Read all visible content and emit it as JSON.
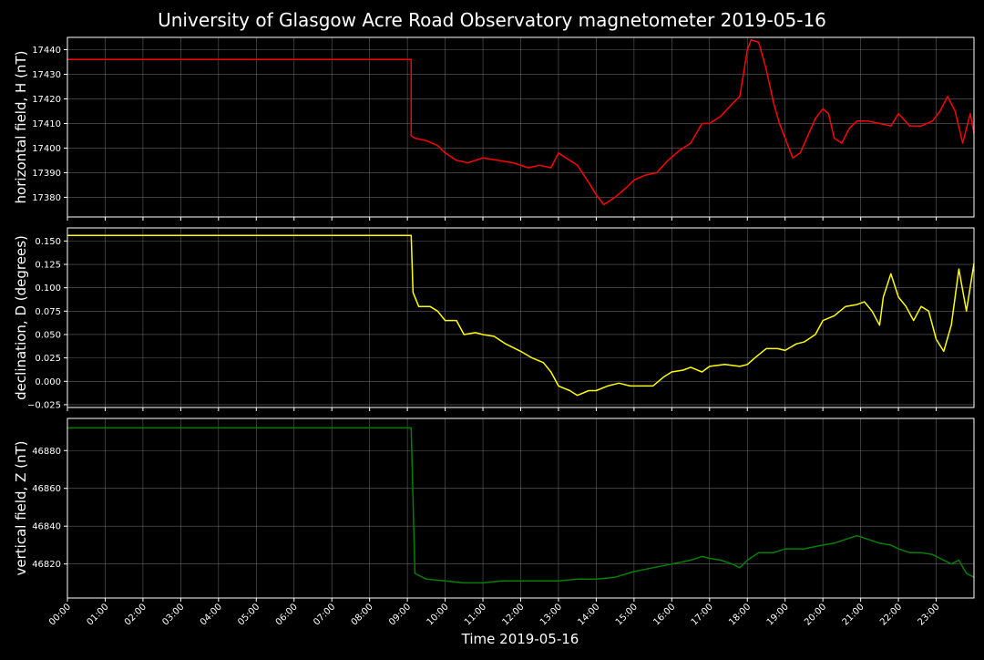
{
  "figure": {
    "title": "University of Glasgow Acre Road Observatory magnetometer 2019-05-16",
    "xlabel": "Time 2019-05-16",
    "background": "#000000",
    "grid_color": "#808080",
    "text_color": "#ffffff"
  },
  "chart_data": [
    {
      "type": "line",
      "ylabel": "horizontal field, H (nT)",
      "color": "#ff0000",
      "xlim": [
        0,
        24
      ],
      "ylim": [
        17372,
        17445
      ],
      "yticks": [
        17380,
        17390,
        17400,
        17410,
        17420,
        17430,
        17440
      ],
      "ytick_labels": [
        "17380",
        "17390",
        "17400",
        "17410",
        "17420",
        "17430",
        "17440"
      ],
      "xticks": [
        0,
        1,
        2,
        3,
        4,
        5,
        6,
        7,
        8,
        9,
        10,
        11,
        12,
        13,
        14,
        15,
        16,
        17,
        18,
        19,
        20,
        21,
        22,
        23
      ],
      "xtick_labels": [
        "00:00",
        "01:00",
        "02:00",
        "03:00",
        "04:00",
        "05:00",
        "06:00",
        "07:00",
        "08:00",
        "09:00",
        "10:00",
        "11:00",
        "12:00",
        "13:00",
        "14:00",
        "15:00",
        "16:00",
        "17:00",
        "18:00",
        "19:00",
        "20:00",
        "21:00",
        "22:00",
        "23:00"
      ],
      "grid": true,
      "series": [
        {
          "x": [
            0,
            9.1,
            9.1,
            9.2,
            9.5,
            9.8,
            10.0,
            10.3,
            10.6,
            11.0,
            11.4,
            11.8,
            12.2,
            12.5,
            12.8,
            13.0,
            13.2,
            13.5,
            13.8,
            14.0,
            14.2,
            14.5,
            14.8,
            15.0,
            15.3,
            15.6,
            15.9,
            16.2,
            16.5,
            16.8,
            17.0,
            17.3,
            17.6,
            17.8,
            18.0,
            18.1,
            18.3,
            18.5,
            18.7,
            18.85,
            19.0,
            19.2,
            19.4,
            19.6,
            19.8,
            20.0,
            20.15,
            20.3,
            20.5,
            20.7,
            20.9,
            21.2,
            21.5,
            21.8,
            22.0,
            22.3,
            22.6,
            22.9,
            23.1,
            23.3,
            23.5,
            23.7,
            23.9,
            24
          ],
          "y": [
            17436,
            17436,
            17405,
            17404,
            17403,
            17401,
            17398,
            17395,
            17394,
            17396,
            17395,
            17394,
            17392,
            17393,
            17392,
            17398,
            17396,
            17393,
            17386,
            17381,
            17377,
            17380,
            17384,
            17387,
            17389,
            17390,
            17395,
            17399,
            17402,
            17410,
            17410,
            17413,
            17418,
            17421,
            17440,
            17444,
            17443,
            17432,
            17418,
            17410,
            17404,
            17396,
            17398,
            17405,
            17412,
            17416,
            17414,
            17404,
            17402,
            17408,
            17411,
            17411,
            17410,
            17409,
            17414,
            17409,
            17409,
            17411,
            17415,
            17421,
            17415,
            17402,
            17414,
            17406
          ]
        }
      ]
    },
    {
      "type": "line",
      "ylabel": "declination, D (degrees)",
      "color": "#ffff00",
      "xlim": [
        0,
        24
      ],
      "ylim": [
        -0.028,
        0.164
      ],
      "yticks": [
        -0.025,
        0.0,
        0.025,
        0.05,
        0.075,
        0.1,
        0.125,
        0.15
      ],
      "ytick_labels": [
        "−0.025",
        "0.000",
        "0.025",
        "0.050",
        "0.075",
        "0.100",
        "0.125",
        "0.150"
      ],
      "xticks": [
        0,
        1,
        2,
        3,
        4,
        5,
        6,
        7,
        8,
        9,
        10,
        11,
        12,
        13,
        14,
        15,
        16,
        17,
        18,
        19,
        20,
        21,
        22,
        23
      ],
      "grid": true,
      "series": [
        {
          "x": [
            0,
            9.1,
            9.1,
            9.15,
            9.3,
            9.6,
            9.8,
            10.0,
            10.3,
            10.5,
            10.8,
            11.0,
            11.3,
            11.6,
            12.0,
            12.3,
            12.6,
            12.8,
            13.0,
            13.3,
            13.5,
            13.8,
            14.0,
            14.3,
            14.6,
            14.9,
            15.2,
            15.5,
            15.8,
            16.0,
            16.3,
            16.5,
            16.8,
            17.0,
            17.4,
            17.8,
            18.0,
            18.2,
            18.5,
            18.8,
            19.0,
            19.3,
            19.5,
            19.8,
            20.0,
            20.3,
            20.6,
            20.9,
            21.1,
            21.3,
            21.5,
            21.6,
            21.8,
            22.0,
            22.2,
            22.4,
            22.6,
            22.8,
            22.9,
            23.0,
            23.2,
            23.4,
            23.5,
            23.6,
            23.8,
            24
          ],
          "y": [
            0.156,
            0.156,
            0.156,
            0.095,
            0.08,
            0.08,
            0.075,
            0.065,
            0.065,
            0.05,
            0.052,
            0.05,
            0.048,
            0.04,
            0.032,
            0.025,
            0.02,
            0.01,
            -0.005,
            -0.01,
            -0.015,
            -0.01,
            -0.01,
            -0.005,
            -0.002,
            -0.005,
            -0.005,
            -0.005,
            0.005,
            0.01,
            0.012,
            0.015,
            0.01,
            0.016,
            0.018,
            0.016,
            0.018,
            0.025,
            0.035,
            0.035,
            0.033,
            0.04,
            0.042,
            0.05,
            0.065,
            0.07,
            0.08,
            0.082,
            0.085,
            0.075,
            0.06,
            0.09,
            0.115,
            0.09,
            0.08,
            0.065,
            0.08,
            0.075,
            0.06,
            0.045,
            0.032,
            0.06,
            0.09,
            0.12,
            0.075,
            0.126
          ]
        }
      ]
    },
    {
      "type": "line",
      "ylabel": "vertical field, Z (nT)",
      "color": "#008000",
      "xlim": [
        0,
        24
      ],
      "ylim": [
        46802,
        46897
      ],
      "yticks": [
        46820,
        46840,
        46860,
        46880
      ],
      "ytick_labels": [
        "46820",
        "46840",
        "46860",
        "46880"
      ],
      "xticks": [
        0,
        1,
        2,
        3,
        4,
        5,
        6,
        7,
        8,
        9,
        10,
        11,
        12,
        13,
        14,
        15,
        16,
        17,
        18,
        19,
        20,
        21,
        22,
        23
      ],
      "grid": true,
      "series": [
        {
          "x": [
            0,
            9.1,
            9.1,
            9.2,
            9.5,
            10.0,
            10.5,
            11.0,
            11.5,
            12.0,
            12.5,
            13.0,
            13.5,
            14.0,
            14.5,
            15.0,
            15.5,
            16.0,
            16.5,
            16.8,
            17.0,
            17.3,
            17.6,
            17.8,
            18.0,
            18.3,
            18.7,
            19.0,
            19.5,
            20.0,
            20.3,
            20.6,
            20.9,
            21.2,
            21.5,
            21.8,
            22.0,
            22.3,
            22.6,
            22.9,
            23.1,
            23.4,
            23.6,
            23.8,
            24
          ],
          "y": [
            46892,
            46892,
            46892,
            46815,
            46812,
            46811,
            46810,
            46810,
            46811,
            46811,
            46811,
            46811,
            46812,
            46812,
            46813,
            46816,
            46818,
            46820,
            46822,
            46824,
            46823,
            46822,
            46820,
            46818,
            46822,
            46826,
            46826,
            46828,
            46828,
            46830,
            46831,
            46833,
            46835,
            46833,
            46831,
            46830,
            46828,
            46826,
            46826,
            46825,
            46823,
            46820,
            46822,
            46815,
            46813
          ]
        }
      ]
    }
  ]
}
